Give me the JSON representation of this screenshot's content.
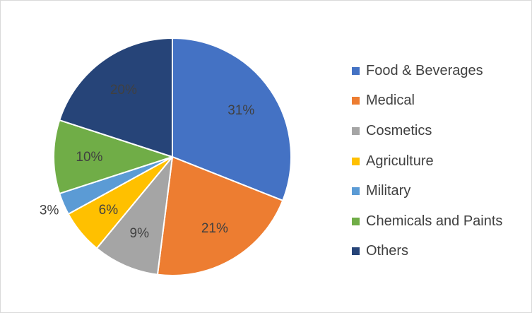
{
  "chart_data": {
    "type": "pie",
    "start_angle_deg": 0,
    "direction": "clockwise",
    "slices": [
      {
        "label": "Food & Beverages",
        "value": 31,
        "display": "31%",
        "color": "#4472C4"
      },
      {
        "label": "Medical",
        "value": 21,
        "display": "21%",
        "color": "#ED7D31"
      },
      {
        "label": "Cosmetics",
        "value": 9,
        "display": "9%",
        "color": "#A5A5A5"
      },
      {
        "label": "Agriculture",
        "value": 6,
        "display": "6%",
        "color": "#FFC000"
      },
      {
        "label": "Military",
        "value": 3,
        "display": "3%",
        "color": "#5B9BD5"
      },
      {
        "label": "Chemicals and Paints",
        "value": 10,
        "display": "10%",
        "color": "#70AD47"
      },
      {
        "label": "Others",
        "value": 20,
        "display": "20%",
        "color": "#264478"
      }
    ],
    "legend_position": "right"
  }
}
